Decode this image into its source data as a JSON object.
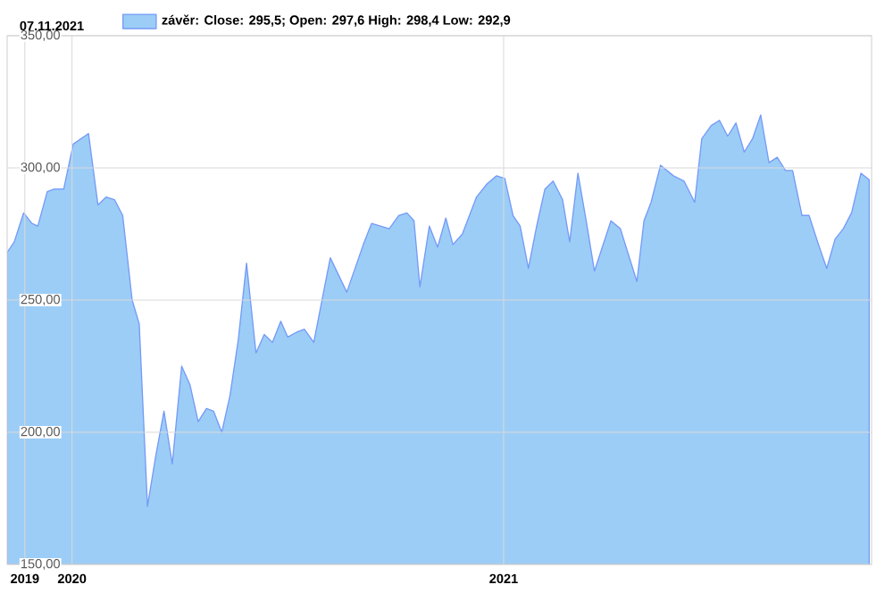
{
  "chart_data": {
    "type": "area",
    "title": "07.11.2021",
    "x": [
      "2019-11-07",
      "2019-11-13",
      "2019-11-21",
      "2019-11-28",
      "2019-12-03",
      "2019-12-11",
      "2019-12-17",
      "2019-12-25",
      "2020-01-02",
      "2020-01-15",
      "2020-01-23",
      "2020-01-30",
      "2020-02-06",
      "2020-02-13",
      "2020-02-21",
      "2020-02-27",
      "2020-03-05",
      "2020-03-12",
      "2020-03-19",
      "2020-03-26",
      "2020-04-03",
      "2020-04-10",
      "2020-04-17",
      "2020-04-24",
      "2020-04-30",
      "2020-05-07",
      "2020-05-14",
      "2020-05-21",
      "2020-05-28",
      "2020-06-05",
      "2020-06-12",
      "2020-06-19",
      "2020-06-26",
      "2020-07-02",
      "2020-07-10",
      "2020-07-16",
      "2020-07-24",
      "2020-08-07",
      "2020-08-21",
      "2020-09-04",
      "2020-09-11",
      "2020-09-26",
      "2020-10-04",
      "2020-10-11",
      "2020-10-17",
      "2020-10-22",
      "2020-10-30",
      "2020-11-06",
      "2020-11-13",
      "2020-11-19",
      "2020-11-27",
      "2020-12-09",
      "2020-12-18",
      "2020-12-26",
      "2021-01-02",
      "2021-01-09",
      "2021-01-15",
      "2021-01-22",
      "2021-01-29",
      "2021-02-05",
      "2021-02-12",
      "2021-02-20",
      "2021-02-26",
      "2021-03-05",
      "2021-03-12",
      "2021-03-19",
      "2021-04-02",
      "2021-04-10",
      "2021-04-24",
      "2021-04-30",
      "2021-05-06",
      "2021-05-14",
      "2021-05-25",
      "2021-06-03",
      "2021-06-12",
      "2021-06-18",
      "2021-06-26",
      "2021-07-03",
      "2021-07-10",
      "2021-07-17",
      "2021-07-24",
      "2021-07-31",
      "2021-08-07",
      "2021-08-14",
      "2021-08-21",
      "2021-08-28",
      "2021-09-03",
      "2021-09-11",
      "2021-09-17",
      "2021-09-25",
      "2021-10-02",
      "2021-10-09",
      "2021-10-16",
      "2021-10-23",
      "2021-10-31",
      "2021-11-07"
    ],
    "series": [
      {
        "name": "závěr: Close: 295,5; Open: 297,6 High: 298,4 Low: 292,9",
        "color": "#9ccdf6",
        "values": [
          268,
          272,
          283,
          279,
          278,
          291,
          292,
          292,
          309,
          313,
          286,
          289,
          288,
          282,
          250,
          241,
          172,
          191,
          208,
          188,
          225,
          218,
          204,
          209,
          208,
          200,
          214,
          235,
          264,
          230,
          237,
          234,
          242,
          236,
          238,
          239,
          234,
          266,
          253,
          271,
          279,
          277,
          282,
          283,
          280,
          255,
          278,
          270,
          281,
          271,
          275,
          289,
          294,
          297,
          296,
          282,
          278,
          262,
          278,
          292,
          295,
          288,
          272,
          298,
          280,
          261,
          280,
          277,
          257,
          280,
          287,
          301,
          297,
          295,
          287,
          311,
          316,
          318,
          312,
          317,
          306,
          311,
          320,
          302,
          304,
          299,
          299,
          282,
          282,
          271,
          262,
          273,
          277,
          283,
          298,
          295.5
        ]
      }
    ],
    "xlim": [
      "2019-11-07",
      "2021-11-09"
    ],
    "xticks": [
      {
        "value": "2019-11-22",
        "label": "2019"
      },
      {
        "value": "2020-01-01",
        "label": "2020"
      },
      {
        "value": "2021-01-01",
        "label": "2021"
      }
    ],
    "ylim": [
      150,
      350
    ],
    "yticks": [
      {
        "value": 150,
        "label": "150,00"
      },
      {
        "value": 200,
        "label": "200,00"
      },
      {
        "value": 250,
        "label": "250,00"
      },
      {
        "value": 300,
        "label": "300,00"
      },
      {
        "value": 350,
        "label": "350,00"
      }
    ],
    "grid": true,
    "legend": "top"
  }
}
